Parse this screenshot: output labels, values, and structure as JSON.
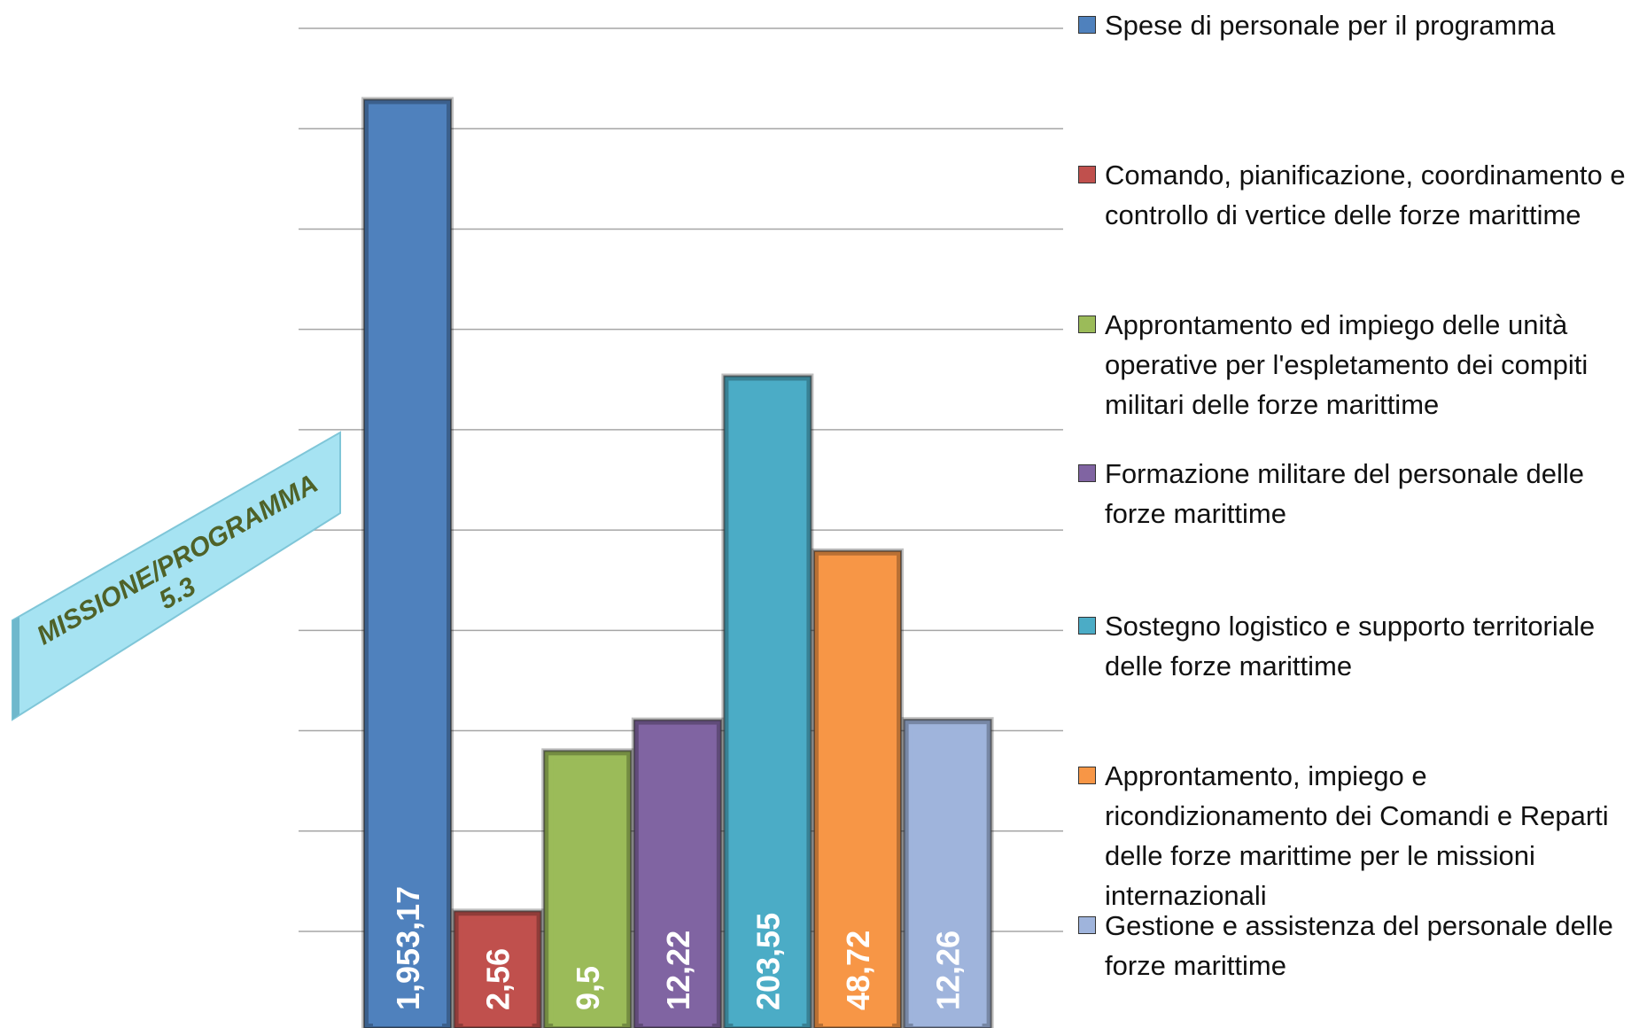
{
  "chart_data": {
    "type": "bar",
    "annotation": [
      "MISSIONE/PROGRAMMA",
      "5.3"
    ],
    "categories": [
      "Spese di personale per il programma",
      "Comando, pianificazione, coordinamento e controllo di vertice delle forze marittime",
      "Approntamento ed impiego delle unità operative per l'espletamento dei compiti militari delle forze marittime",
      "Formazione militare del personale delle forze marittime",
      "Sostegno logistico e supporto territoriale delle forze marittime",
      "Approntamento, impiego e ricondizionamento dei Comandi e Reparti delle forze marittime per le missioni internazionali",
      "Gestione e assistenza del personale delle forze marittime"
    ],
    "values": [
      1953.17,
      2.56,
      9.5,
      12.22,
      203.55,
      48.72,
      12.26
    ],
    "value_labels": [
      "1,953,17",
      "2,56",
      "9,5",
      "12,22",
      "203,55",
      "48,72",
      "12,26"
    ],
    "colors": [
      "#4f81bd",
      "#c0504d",
      "#9bbb59",
      "#8064a2",
      "#4bacc6",
      "#f79646",
      "#9fb4dc"
    ],
    "ylim": [
      1,
      3500
    ],
    "log_scale": true,
    "grid": true,
    "legend": "right"
  }
}
